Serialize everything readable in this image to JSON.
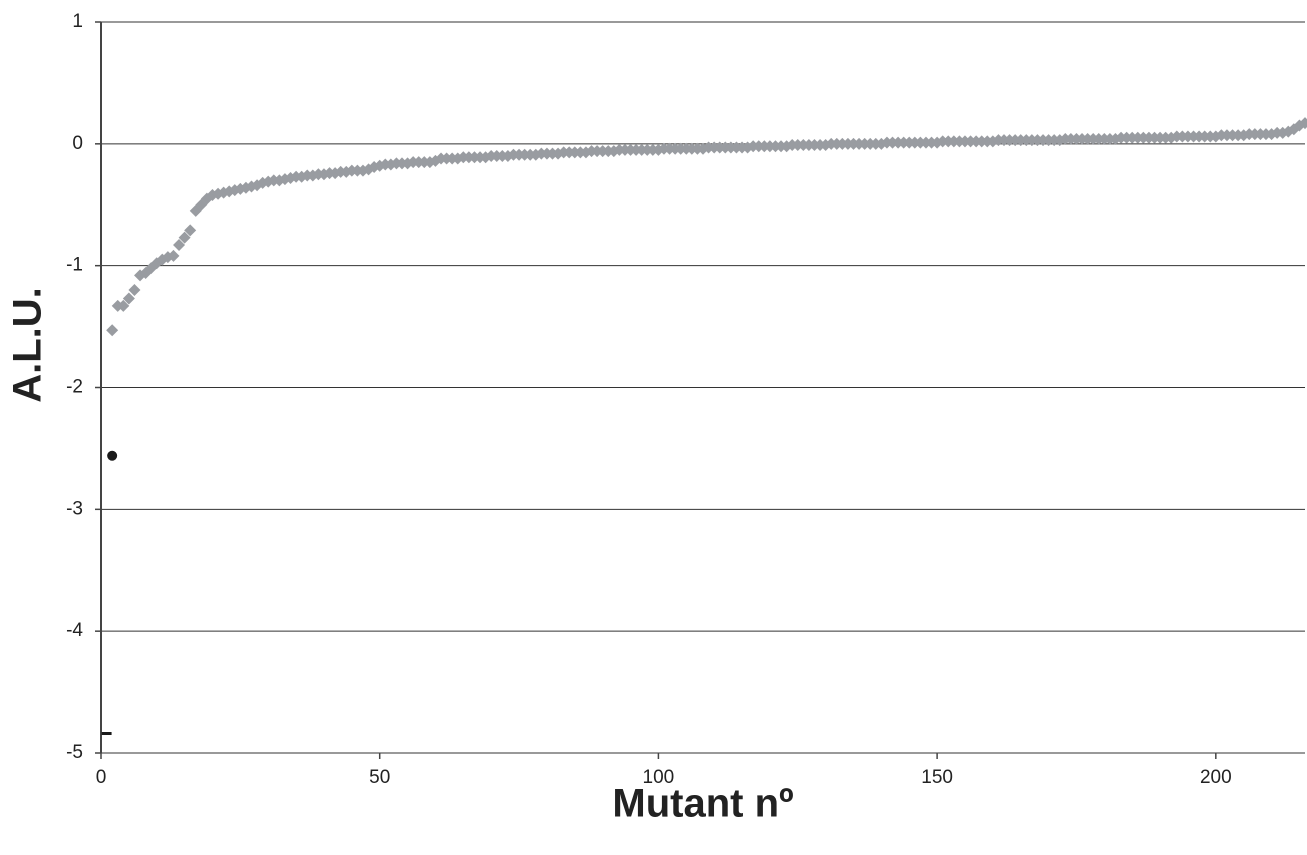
{
  "chart_data": {
    "type": "scatter",
    "x_label": "Mutant nº",
    "y_label": "A.L.U.",
    "xlim": [
      0,
      216
    ],
    "ylim": [
      -5,
      1
    ],
    "xticks": [
      0,
      50,
      100,
      150,
      200
    ],
    "yticks": [
      1,
      0,
      -1,
      -2,
      -3,
      -4,
      -5
    ],
    "grid": true,
    "series": [
      {
        "color": "#999ca1",
        "marker": "diamond",
        "x": [
          2,
          3,
          4,
          5,
          6,
          7,
          8,
          9,
          10,
          11,
          12,
          13,
          14,
          15,
          16,
          17,
          18,
          19,
          20,
          21,
          22,
          23,
          24,
          25,
          26,
          27,
          28,
          29,
          30,
          31,
          32,
          33,
          34,
          35,
          36,
          37,
          38,
          39,
          40,
          41,
          42,
          43,
          44,
          45,
          46,
          47,
          48,
          49,
          50,
          51,
          52,
          53,
          54,
          55,
          56,
          57,
          58,
          59,
          60,
          61,
          62,
          63,
          64,
          65,
          66,
          67,
          68,
          69,
          70,
          71,
          72,
          73,
          74,
          75,
          76,
          77,
          78,
          79,
          80,
          81,
          82,
          83,
          84,
          85,
          86,
          87,
          88,
          89,
          90,
          91,
          92,
          93,
          94,
          95,
          96,
          97,
          98,
          99,
          100,
          101,
          102,
          103,
          104,
          105,
          106,
          107,
          108,
          109,
          110,
          111,
          112,
          113,
          114,
          115,
          116,
          117,
          118,
          119,
          120,
          121,
          122,
          123,
          124,
          125,
          126,
          127,
          128,
          129,
          130,
          131,
          132,
          133,
          134,
          135,
          136,
          137,
          138,
          139,
          140,
          141,
          142,
          143,
          144,
          145,
          146,
          147,
          148,
          149,
          150,
          151,
          152,
          153,
          154,
          155,
          156,
          157,
          158,
          159,
          160,
          161,
          162,
          163,
          164,
          165,
          166,
          167,
          168,
          169,
          170,
          171,
          172,
          173,
          174,
          175,
          176,
          177,
          178,
          179,
          180,
          181,
          182,
          183,
          184,
          185,
          186,
          187,
          188,
          189,
          190,
          191,
          192,
          193,
          194,
          195,
          196,
          197,
          198,
          199,
          200,
          201,
          202,
          203,
          204,
          205,
          206,
          207,
          208,
          209,
          210,
          211,
          212,
          213,
          214,
          215,
          216
        ],
        "values": [
          -1.53,
          -1.33,
          -1.33,
          -1.27,
          -1.2,
          -1.08,
          -1.06,
          -1.02,
          -0.98,
          -0.95,
          -0.93,
          -0.92,
          -0.83,
          -0.77,
          -0.71,
          -0.55,
          -0.5,
          -0.45,
          -0.42,
          -0.41,
          -0.4,
          -0.39,
          -0.38,
          -0.37,
          -0.36,
          -0.35,
          -0.34,
          -0.32,
          -0.31,
          -0.3,
          -0.3,
          -0.29,
          -0.28,
          -0.27,
          -0.27,
          -0.26,
          -0.26,
          -0.25,
          -0.25,
          -0.24,
          -0.24,
          -0.23,
          -0.23,
          -0.22,
          -0.22,
          -0.22,
          -0.21,
          -0.19,
          -0.18,
          -0.17,
          -0.17,
          -0.16,
          -0.16,
          -0.16,
          -0.15,
          -0.15,
          -0.15,
          -0.15,
          -0.14,
          -0.12,
          -0.12,
          -0.12,
          -0.12,
          -0.11,
          -0.11,
          -0.11,
          -0.11,
          -0.11,
          -0.1,
          -0.1,
          -0.1,
          -0.1,
          -0.09,
          -0.09,
          -0.09,
          -0.09,
          -0.09,
          -0.08,
          -0.08,
          -0.08,
          -0.08,
          -0.07,
          -0.07,
          -0.07,
          -0.07,
          -0.07,
          -0.06,
          -0.06,
          -0.06,
          -0.06,
          -0.06,
          -0.05,
          -0.05,
          -0.05,
          -0.05,
          -0.05,
          -0.05,
          -0.05,
          -0.05,
          -0.04,
          -0.04,
          -0.04,
          -0.04,
          -0.04,
          -0.04,
          -0.04,
          -0.04,
          -0.03,
          -0.03,
          -0.03,
          -0.03,
          -0.03,
          -0.03,
          -0.03,
          -0.03,
          -0.02,
          -0.02,
          -0.02,
          -0.02,
          -0.02,
          -0.02,
          -0.02,
          -0.01,
          -0.01,
          -0.01,
          -0.01,
          -0.01,
          -0.01,
          -0.01,
          0,
          0,
          0,
          0,
          0,
          0,
          0,
          0,
          0,
          0,
          0.01,
          0.01,
          0.01,
          0.01,
          0.01,
          0.01,
          0.01,
          0.01,
          0.01,
          0.01,
          0.02,
          0.02,
          0.02,
          0.02,
          0.02,
          0.02,
          0.02,
          0.02,
          0.02,
          0.02,
          0.03,
          0.03,
          0.03,
          0.03,
          0.03,
          0.03,
          0.03,
          0.03,
          0.03,
          0.03,
          0.03,
          0.03,
          0.04,
          0.04,
          0.04,
          0.04,
          0.04,
          0.04,
          0.04,
          0.04,
          0.04,
          0.04,
          0.05,
          0.05,
          0.05,
          0.05,
          0.05,
          0.05,
          0.05,
          0.05,
          0.05,
          0.05,
          0.06,
          0.06,
          0.06,
          0.06,
          0.06,
          0.06,
          0.06,
          0.06,
          0.07,
          0.07,
          0.07,
          0.07,
          0.07,
          0.08,
          0.08,
          0.08,
          0.08,
          0.08,
          0.09,
          0.09,
          0.1,
          0.12,
          0.15,
          0.17
        ]
      },
      {
        "color": "#1a1a1a",
        "marker": "circle",
        "x": [
          2
        ],
        "values": [
          -2.56
        ]
      },
      {
        "color": "#1a1a1a",
        "marker": "dash",
        "x": [
          1
        ],
        "values": [
          -4.84
        ]
      }
    ]
  }
}
